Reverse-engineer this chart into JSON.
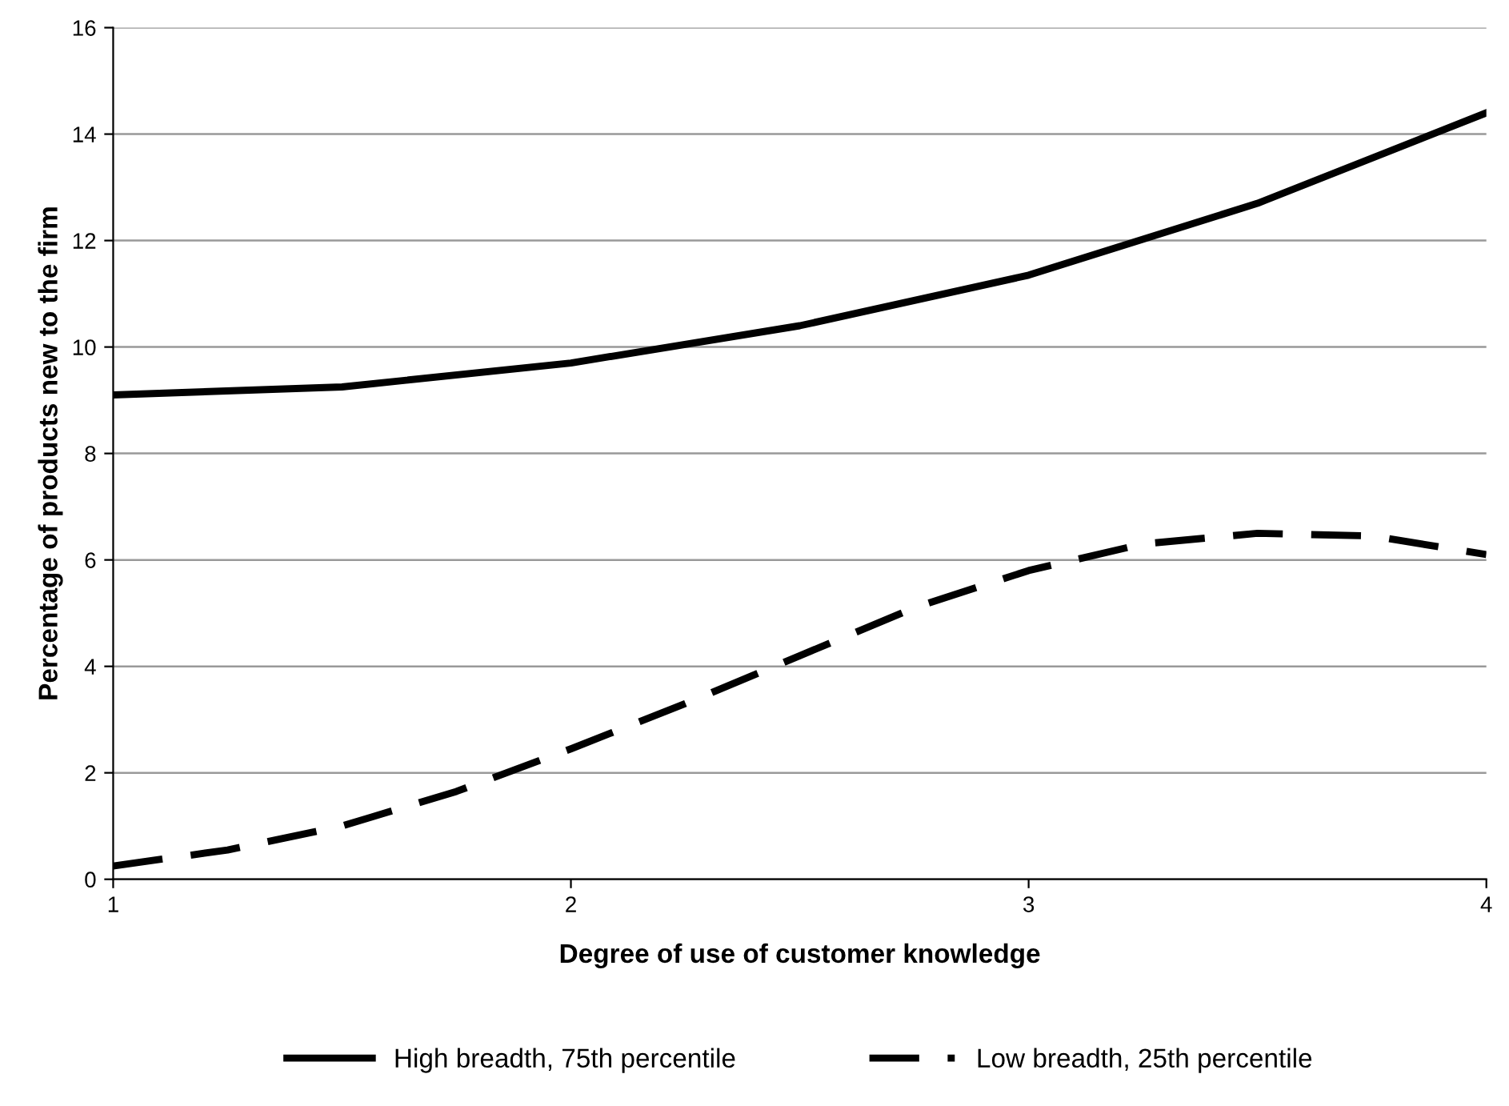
{
  "chart_data": {
    "type": "line",
    "xlabel": "Degree of use of customer knowledge",
    "ylabel": "Percentage of products new to the firm",
    "xlim": [
      1,
      4
    ],
    "xticks": [
      1,
      2,
      3,
      4
    ],
    "ylim": [
      0,
      16
    ],
    "yticks": [
      0,
      2,
      4,
      6,
      8,
      10,
      12,
      14,
      16
    ],
    "grid": "y",
    "legend": "bottom",
    "marker": "none",
    "series": [
      {
        "name": "High breadth, 75th percentile",
        "color": "#000000",
        "line_style": "solid",
        "x": [
          1,
          1.5,
          2,
          2.5,
          3,
          3.5,
          4
        ],
        "values": [
          9.1,
          9.25,
          9.7,
          10.4,
          11.35,
          12.7,
          14.4
        ]
      },
      {
        "name": "Low breadth, 25th percentile",
        "color": "#000000",
        "line_style": "dashed",
        "x": [
          1,
          1.25,
          1.5,
          1.75,
          2,
          2.25,
          2.5,
          2.75,
          3,
          3.25,
          3.5,
          3.75,
          4
        ],
        "values": [
          0.25,
          0.55,
          1.0,
          1.65,
          2.45,
          3.3,
          4.2,
          5.1,
          5.8,
          6.3,
          6.5,
          6.45,
          6.1
        ]
      }
    ]
  }
}
